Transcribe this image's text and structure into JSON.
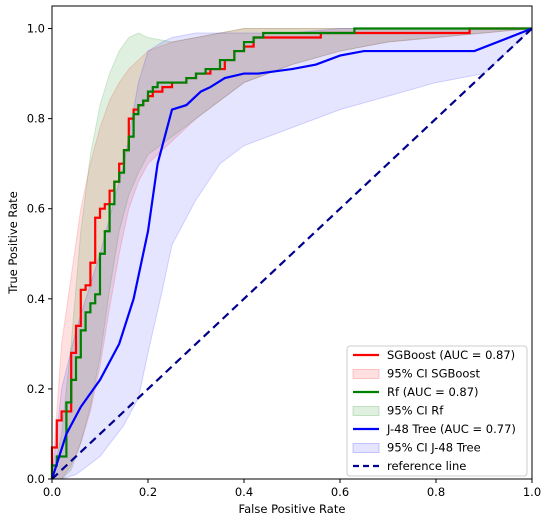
{
  "chart_data": {
    "type": "line",
    "xlabel": "False Positive Rate",
    "ylabel": "True Positive Rate",
    "xlim": [
      0,
      1
    ],
    "ylim": [
      0,
      1.05
    ],
    "xticks": [
      "0.0",
      "0.2",
      "0.4",
      "0.6",
      "0.8",
      "1.0"
    ],
    "yticks": [
      "0.0",
      "0.2",
      "0.4",
      "0.6",
      "0.8",
      "1.0"
    ],
    "grid": false,
    "legend_position": "lower-right",
    "series": [
      {
        "name": "SGBoost (AUC = 0.87)",
        "color": "#ff0000",
        "x": [
          0.0,
          0.0,
          0.01,
          0.01,
          0.02,
          0.02,
          0.04,
          0.04,
          0.05,
          0.05,
          0.06,
          0.06,
          0.07,
          0.07,
          0.08,
          0.08,
          0.09,
          0.09,
          0.1,
          0.1,
          0.11,
          0.11,
          0.12,
          0.12,
          0.13,
          0.13,
          0.14,
          0.14,
          0.15,
          0.15,
          0.16,
          0.16,
          0.17,
          0.17,
          0.18,
          0.18,
          0.19,
          0.19,
          0.2,
          0.2,
          0.21,
          0.21,
          0.23,
          0.23,
          0.25,
          0.25,
          0.28,
          0.28,
          0.3,
          0.3,
          0.33,
          0.33,
          0.36,
          0.36,
          0.38,
          0.38,
          0.4,
          0.4,
          0.42,
          0.42,
          0.44,
          0.44,
          0.56,
          0.56,
          0.87,
          0.87,
          1.0
        ],
        "y": [
          0.0,
          0.07,
          0.07,
          0.13,
          0.13,
          0.15,
          0.15,
          0.28,
          0.28,
          0.34,
          0.34,
          0.42,
          0.42,
          0.43,
          0.43,
          0.48,
          0.48,
          0.58,
          0.58,
          0.6,
          0.6,
          0.61,
          0.61,
          0.64,
          0.64,
          0.66,
          0.66,
          0.7,
          0.7,
          0.73,
          0.73,
          0.8,
          0.8,
          0.82,
          0.82,
          0.83,
          0.83,
          0.84,
          0.84,
          0.85,
          0.85,
          0.86,
          0.86,
          0.87,
          0.87,
          0.88,
          0.88,
          0.89,
          0.89,
          0.9,
          0.9,
          0.91,
          0.91,
          0.93,
          0.93,
          0.95,
          0.95,
          0.96,
          0.96,
          0.98,
          0.98,
          0.98,
          0.98,
          0.99,
          0.99,
          1.0,
          1.0
        ]
      },
      {
        "name": "Rf (AUC = 0.87)",
        "color": "#008000",
        "x": [
          0.0,
          0.0,
          0.01,
          0.01,
          0.03,
          0.03,
          0.04,
          0.04,
          0.05,
          0.05,
          0.06,
          0.06,
          0.07,
          0.07,
          0.08,
          0.08,
          0.09,
          0.09,
          0.1,
          0.1,
          0.11,
          0.11,
          0.12,
          0.12,
          0.13,
          0.13,
          0.14,
          0.14,
          0.15,
          0.15,
          0.16,
          0.16,
          0.17,
          0.17,
          0.18,
          0.18,
          0.19,
          0.19,
          0.2,
          0.2,
          0.21,
          0.21,
          0.22,
          0.22,
          0.28,
          0.28,
          0.3,
          0.3,
          0.32,
          0.32,
          0.35,
          0.35,
          0.38,
          0.38,
          0.4,
          0.4,
          0.42,
          0.42,
          0.44,
          0.44,
          0.63,
          0.63,
          1.0
        ],
        "y": [
          0.0,
          0.03,
          0.03,
          0.05,
          0.05,
          0.17,
          0.17,
          0.22,
          0.22,
          0.27,
          0.27,
          0.33,
          0.33,
          0.37,
          0.37,
          0.39,
          0.39,
          0.41,
          0.41,
          0.5,
          0.5,
          0.55,
          0.55,
          0.61,
          0.61,
          0.66,
          0.66,
          0.68,
          0.68,
          0.73,
          0.73,
          0.76,
          0.76,
          0.81,
          0.81,
          0.83,
          0.83,
          0.84,
          0.84,
          0.86,
          0.86,
          0.87,
          0.87,
          0.88,
          0.88,
          0.89,
          0.89,
          0.9,
          0.9,
          0.91,
          0.91,
          0.93,
          0.93,
          0.95,
          0.95,
          0.97,
          0.97,
          0.98,
          0.98,
          0.99,
          0.99,
          1.0,
          1.0
        ]
      },
      {
        "name": "J-48 Tree (AUC = 0.77)",
        "color": "#0000ff",
        "x": [
          0.0,
          0.03,
          0.06,
          0.1,
          0.14,
          0.17,
          0.2,
          0.22,
          0.24,
          0.25,
          0.25,
          0.28,
          0.31,
          0.33,
          0.36,
          0.4,
          0.43,
          0.5,
          0.55,
          0.6,
          0.65,
          0.78,
          0.88,
          1.0
        ],
        "y": [
          0.0,
          0.1,
          0.16,
          0.22,
          0.3,
          0.4,
          0.55,
          0.7,
          0.78,
          0.82,
          0.82,
          0.83,
          0.86,
          0.87,
          0.89,
          0.9,
          0.9,
          0.91,
          0.92,
          0.94,
          0.95,
          0.95,
          0.95,
          1.0
        ]
      },
      {
        "name": "reference line",
        "color": "#00008b",
        "dashed": true,
        "x": [
          0.0,
          1.0
        ],
        "y": [
          0.0,
          1.0
        ]
      }
    ],
    "bands": [
      {
        "name": "95% CI SGBoost",
        "color": "#ff0000",
        "opacity": 0.12,
        "x": [
          0.0,
          0.02,
          0.04,
          0.06,
          0.08,
          0.1,
          0.12,
          0.14,
          0.16,
          0.18,
          0.2,
          0.25,
          0.3,
          0.35,
          0.4,
          0.5,
          0.6,
          0.7,
          0.8,
          0.9,
          1.0
        ],
        "lower": [
          0.0,
          0.0,
          0.03,
          0.08,
          0.15,
          0.25,
          0.38,
          0.5,
          0.6,
          0.66,
          0.7,
          0.75,
          0.8,
          0.84,
          0.88,
          0.92,
          0.95,
          0.97,
          0.98,
          0.99,
          1.0
        ],
        "upper": [
          0.0,
          0.3,
          0.45,
          0.6,
          0.7,
          0.78,
          0.84,
          0.88,
          0.91,
          0.93,
          0.95,
          0.97,
          0.98,
          0.99,
          1.0,
          1.0,
          1.0,
          1.0,
          1.0,
          1.0,
          1.0
        ]
      },
      {
        "name": "95% CI Rf",
        "color": "#008000",
        "opacity": 0.12,
        "x": [
          0.0,
          0.02,
          0.04,
          0.06,
          0.08,
          0.1,
          0.12,
          0.14,
          0.16,
          0.18,
          0.2,
          0.25,
          0.3,
          0.35,
          0.4,
          0.5,
          0.6,
          0.7,
          0.8,
          0.9,
          1.0
        ],
        "lower": [
          0.0,
          0.0,
          0.02,
          0.08,
          0.16,
          0.27,
          0.42,
          0.55,
          0.63,
          0.68,
          0.72,
          0.76,
          0.8,
          0.84,
          0.88,
          0.92,
          0.95,
          0.97,
          0.98,
          0.99,
          1.0
        ],
        "upper": [
          0.0,
          0.1,
          0.3,
          0.55,
          0.72,
          0.83,
          0.9,
          0.95,
          0.98,
          0.99,
          0.98,
          0.97,
          0.98,
          0.99,
          1.0,
          1.0,
          1.0,
          1.0,
          1.0,
          1.0,
          1.0
        ]
      },
      {
        "name": "95% CI J-48 Tree",
        "color": "#0000ff",
        "opacity": 0.1,
        "x": [
          0.0,
          0.02,
          0.05,
          0.1,
          0.15,
          0.18,
          0.2,
          0.23,
          0.25,
          0.3,
          0.35,
          0.4,
          0.5,
          0.6,
          0.7,
          0.8,
          0.9,
          1.0
        ],
        "lower": [
          0.0,
          0.0,
          0.01,
          0.05,
          0.12,
          0.18,
          0.28,
          0.42,
          0.52,
          0.62,
          0.7,
          0.74,
          0.78,
          0.82,
          0.85,
          0.88,
          0.9,
          1.0
        ],
        "upper": [
          0.0,
          0.2,
          0.33,
          0.5,
          0.7,
          0.88,
          0.95,
          0.97,
          0.98,
          0.99,
          0.99,
          0.99,
          0.99,
          1.0,
          1.0,
          1.0,
          1.0,
          1.0
        ]
      }
    ],
    "legend": [
      {
        "label": "SGBoost (AUC = 0.87)",
        "kind": "line",
        "color": "#ff0000"
      },
      {
        "label": "95% CI SGBoost",
        "kind": "patch",
        "color": "#ff0000",
        "opacity": 0.12
      },
      {
        "label": "Rf (AUC = 0.87)",
        "kind": "line",
        "color": "#008000"
      },
      {
        "label": "95% CI Rf",
        "kind": "patch",
        "color": "#008000",
        "opacity": 0.12
      },
      {
        "label": "J-48 Tree (AUC = 0.77)",
        "kind": "line",
        "color": "#0000ff"
      },
      {
        "label": "95% CI J-48 Tree",
        "kind": "patch",
        "color": "#0000ff",
        "opacity": 0.1
      },
      {
        "label": "reference line",
        "kind": "dashed",
        "color": "#00008b"
      }
    ]
  }
}
